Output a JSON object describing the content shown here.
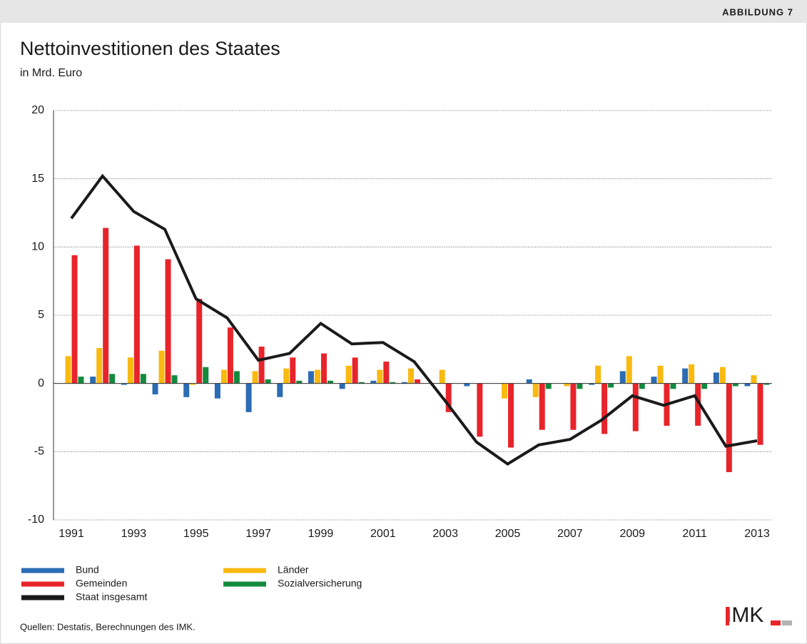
{
  "header_label": "ABBILDUNG 7",
  "source": "Quellen: Destatis, Berechnungen des IMK.",
  "logo": "IMK",
  "chart_data": {
    "type": "bar",
    "title": "Nettoinvestitionen des Staates",
    "subtitle": "in Mrd. Euro",
    "categories": [
      "1991",
      null,
      "1993",
      null,
      "1995",
      null,
      "1997",
      null,
      "1999",
      null,
      "2001",
      null,
      "2003",
      null,
      "2005",
      null,
      "2007",
      null,
      "2009",
      null,
      "2011",
      null,
      "2013"
    ],
    "ylim": [
      -10,
      20
    ],
    "yticks": [
      -10,
      -5,
      0,
      5,
      10,
      15,
      20
    ],
    "grid": true,
    "series": [
      {
        "name": "Bund",
        "color": "#2b6cb4",
        "type": "bar",
        "values": [
          0.0,
          0.5,
          -0.1,
          -0.8,
          -1.0,
          -1.1,
          -2.1,
          -1.0,
          0.9,
          -0.4,
          0.2,
          0.1,
          0.0,
          -0.2,
          0.0,
          0.3,
          0.0,
          -0.1,
          0.9,
          0.5,
          1.1,
          0.8,
          -0.2
        ]
      },
      {
        "name": "Länder",
        "color": "#f9b90e",
        "type": "bar",
        "values": [
          2.0,
          2.6,
          1.9,
          2.4,
          -0.1,
          1.0,
          0.9,
          1.1,
          1.0,
          1.3,
          1.0,
          1.1,
          1.0,
          0.0,
          -1.1,
          -1.0,
          -0.2,
          1.3,
          2.0,
          1.3,
          1.4,
          1.2,
          0.6
        ]
      },
      {
        "name": "Gemeinden",
        "color": "#e8242b",
        "type": "bar",
        "values": [
          9.4,
          11.4,
          10.1,
          9.1,
          6.2,
          4.1,
          2.7,
          1.9,
          2.2,
          1.9,
          1.6,
          0.3,
          -2.1,
          -3.9,
          -4.7,
          -3.4,
          -3.4,
          -3.7,
          -3.5,
          -3.1,
          -3.1,
          -6.5,
          -4.5
        ]
      },
      {
        "name": "Sozialversicherung",
        "color": "#138a3e",
        "type": "bar",
        "values": [
          0.5,
          0.7,
          0.7,
          0.6,
          1.2,
          0.9,
          0.3,
          0.2,
          0.2,
          0.1,
          0.1,
          0.0,
          0.0,
          0.0,
          0.0,
          -0.4,
          -0.4,
          -0.3,
          -0.4,
          -0.4,
          -0.4,
          -0.2,
          -0.1
        ]
      },
      {
        "name": "Staat insgesamt",
        "color": "#1a1a1a",
        "type": "line",
        "values": [
          12.1,
          15.2,
          12.6,
          11.3,
          6.2,
          4.8,
          1.7,
          2.2,
          4.4,
          2.9,
          3.0,
          1.6,
          -1.3,
          -4.3,
          -5.9,
          -4.5,
          -4.1,
          -2.7,
          -0.9,
          -1.6,
          -0.9,
          -4.6,
          -4.2
        ]
      }
    ]
  }
}
